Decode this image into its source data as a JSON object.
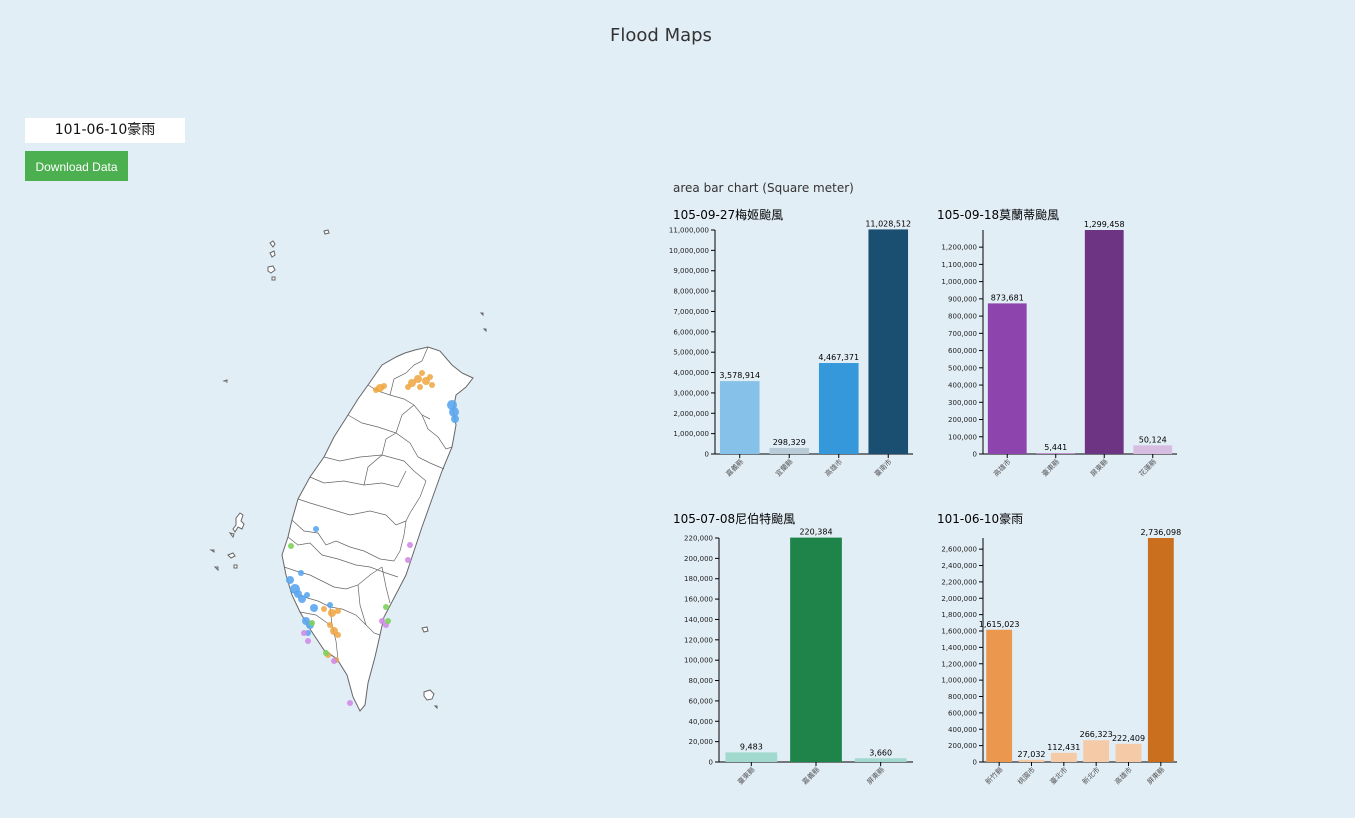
{
  "page": {
    "title": "Flood Maps",
    "event_select_value": "101-06-10豪雨",
    "download_label": "Download Data",
    "charts_heading": "area bar chart (Square meter)"
  },
  "map": {
    "point_colors": {
      "blue": "#5ba6f0",
      "orange": "#f0a53e",
      "purple": "#d08be8",
      "green": "#7cd25a"
    }
  },
  "chart_data": [
    {
      "type": "bar",
      "title": "105-09-27梅姬颱風",
      "categories": [
        "嘉義縣",
        "宜蘭縣",
        "高雄市",
        "臺南市"
      ],
      "values": [
        3578914,
        298329,
        4467371,
        11028512
      ],
      "value_labels": [
        "3,578,914",
        "298,329",
        "4,467,371",
        "11,028,512"
      ],
      "colors": [
        "#85c1e9",
        "#b8cbd6",
        "#3498db",
        "#1b4f72"
      ],
      "ylim": [
        0,
        11000000
      ],
      "yticks": [
        0,
        1000000,
        2000000,
        3000000,
        4000000,
        5000000,
        6000000,
        7000000,
        8000000,
        9000000,
        10000000,
        11000000
      ],
      "ytick_labels": [
        "0",
        "1,000,000",
        "2,000,000",
        "3,000,000",
        "4,000,000",
        "5,000,000",
        "6,000,000",
        "7,000,000",
        "8,000,000",
        "9,000,000",
        "10,000,000",
        "11,000,000"
      ],
      "xlabel": "",
      "ylabel": ""
    },
    {
      "type": "bar",
      "title": "105-09-18莫蘭蒂颱風",
      "categories": [
        "高雄市",
        "臺東縣",
        "屏東縣",
        "花蓮縣"
      ],
      "values": [
        873681,
        5441,
        1299458,
        50124
      ],
      "value_labels": [
        "873,681",
        "5,441",
        "1,299,458",
        "50,124"
      ],
      "colors": [
        "#8e44ad",
        "#b98fcc",
        "#6c3483",
        "#d7bde2"
      ],
      "ylim": [
        0,
        1299458
      ],
      "yticks": [
        0,
        100000,
        200000,
        300000,
        400000,
        500000,
        600000,
        700000,
        800000,
        900000,
        1000000,
        1100000,
        1200000
      ],
      "ytick_labels": [
        "0",
        "100,000",
        "200,000",
        "300,000",
        "400,000",
        "500,000",
        "600,000",
        "700,000",
        "800,000",
        "900,000",
        "1,000,000",
        "1,100,000",
        "1,200,000"
      ],
      "xlabel": "",
      "ylabel": ""
    },
    {
      "type": "bar",
      "title": "105-07-08尼伯特颱風",
      "categories": [
        "臺東縣",
        "嘉義縣",
        "屏東縣"
      ],
      "values": [
        9483,
        220384,
        3660
      ],
      "value_labels": [
        "9,483",
        "220,384",
        "3,660"
      ],
      "colors": [
        "#a2d9ce",
        "#1e8449",
        "#a2d9ce"
      ],
      "ylim": [
        0,
        220000
      ],
      "yticks": [
        0,
        20000,
        40000,
        60000,
        80000,
        100000,
        120000,
        140000,
        160000,
        180000,
        200000,
        220000
      ],
      "ytick_labels": [
        "0",
        "20,000",
        "40,000",
        "60,000",
        "80,000",
        "100,000",
        "120,000",
        "140,000",
        "160,000",
        "180,000",
        "200,000",
        "220,000"
      ],
      "xlabel": "",
      "ylabel": ""
    },
    {
      "type": "bar",
      "title": "101-06-10豪雨",
      "categories": [
        "新竹縣",
        "桃園市",
        "臺北市",
        "新北市",
        "高雄市",
        "屏東縣"
      ],
      "values": [
        1615023,
        27032,
        112431,
        266323,
        222409,
        2736098
      ],
      "value_labels": [
        "1,615,023",
        "27,032",
        "112,431",
        "266,323",
        "222,409",
        "2,736,098"
      ],
      "colors": [
        "#eb984e",
        "#f5cba7",
        "#f5cba7",
        "#f5cba7",
        "#f5cba7",
        "#ca6f1e"
      ],
      "ylim": [
        0,
        2736098
      ],
      "yticks": [
        0,
        200000,
        400000,
        600000,
        800000,
        1000000,
        1200000,
        1400000,
        1600000,
        1800000,
        2000000,
        2200000,
        2400000,
        2600000
      ],
      "ytick_labels": [
        "0",
        "200,000",
        "400,000",
        "600,000",
        "800,000",
        "1,000,000",
        "1,200,000",
        "1,400,000",
        "1,600,000",
        "1,800,000",
        "2,000,000",
        "2,200,000",
        "2,400,000",
        "2,600,000"
      ],
      "xlabel": "",
      "ylabel": ""
    }
  ]
}
